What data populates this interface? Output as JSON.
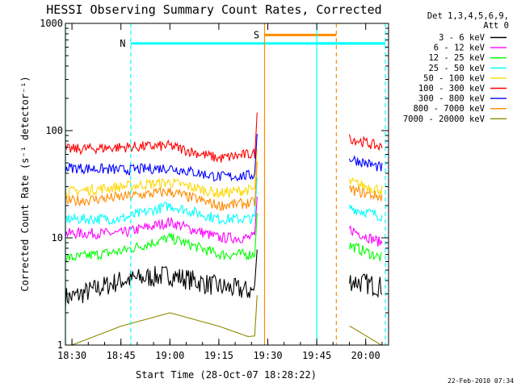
{
  "chart_data": {
    "type": "line",
    "title": "HESSI Observing Summary Count Rates, Corrected",
    "xlabel": "Start Time (28-Oct-07 18:28:22)",
    "ylabel": "Corrected Count Rate (s⁻¹ detector⁻¹)",
    "y_scale": "log",
    "ylim": [
      1,
      1000
    ],
    "xlim": [
      "18:28",
      "20:07"
    ],
    "x_ticks": [
      "18:30",
      "18:45",
      "19:00",
      "19:15",
      "19:30",
      "19:45",
      "20:00"
    ],
    "y_ticks": [
      "1",
      "10",
      "100",
      "1000"
    ],
    "legend_title": [
      "Det 1,3,4,5,6,9,",
      "Att 0"
    ],
    "legend_placement": "top-right, outside plot",
    "timestamp": "22-Feb-2010 07:34",
    "markers": [
      {
        "label": "",
        "time": "18:28",
        "color": "#00ffff",
        "style": "solid"
      },
      {
        "label": "N",
        "time": "18:48",
        "color": "#00ffff",
        "style": "dashed",
        "band_value": 650
      },
      {
        "label": "S",
        "time": "19:29",
        "color": "#ff8c00",
        "style": "solid",
        "band_value": 780
      },
      {
        "label": "",
        "time": "19:51",
        "color": "#ff8c00",
        "style": "dashed"
      },
      {
        "label": "",
        "time": "19:45",
        "color": "#00ffff",
        "style": "solid",
        "band_value": 650
      },
      {
        "label": "",
        "time": "20:06",
        "color": "#00ffff",
        "style": "dashed"
      }
    ],
    "segments": [
      {
        "start": "18:28",
        "end": "19:26"
      },
      {
        "start": "19:55",
        "end": "20:05"
      }
    ],
    "series": [
      {
        "name": "3 - 6 keV",
        "color": "#000000",
        "values": [
          [
            18.5,
            2.8
          ],
          [
            18.75,
            4.0
          ],
          [
            19.0,
            4.5
          ],
          [
            19.25,
            3.5
          ],
          [
            19.4,
            3.2
          ],
          [
            19.92,
            4.0
          ],
          [
            20.08,
            3.5
          ]
        ]
      },
      {
        "name": "6 - 12 keV",
        "color": "#ff00ff",
        "values": [
          [
            18.5,
            11
          ],
          [
            18.75,
            11
          ],
          [
            19.0,
            14
          ],
          [
            19.25,
            10
          ],
          [
            19.4,
            10
          ],
          [
            19.92,
            12
          ],
          [
            20.08,
            9
          ]
        ]
      },
      {
        "name": "12 - 25 keV",
        "color": "#00ff00",
        "values": [
          [
            18.5,
            6.5
          ],
          [
            18.75,
            7.5
          ],
          [
            19.0,
            10
          ],
          [
            19.25,
            7
          ],
          [
            19.4,
            7
          ],
          [
            19.92,
            8.5
          ],
          [
            20.08,
            6.5
          ]
        ]
      },
      {
        "name": "25 - 50 keV",
        "color": "#00ffff",
        "values": [
          [
            18.5,
            15
          ],
          [
            18.75,
            15
          ],
          [
            19.0,
            20
          ],
          [
            19.25,
            15
          ],
          [
            19.4,
            15
          ],
          [
            19.92,
            19
          ],
          [
            20.08,
            16
          ]
        ]
      },
      {
        "name": "50 - 100 keV",
        "color": "#ffd700",
        "values": [
          [
            18.5,
            27
          ],
          [
            18.75,
            30
          ],
          [
            19.0,
            33
          ],
          [
            19.25,
            26
          ],
          [
            19.4,
            28
          ],
          [
            19.92,
            33
          ],
          [
            20.08,
            28
          ]
        ]
      },
      {
        "name": "100 - 300 keV",
        "color": "#ff0000",
        "values": [
          [
            18.5,
            67
          ],
          [
            18.75,
            70
          ],
          [
            19.0,
            72
          ],
          [
            19.25,
            55
          ],
          [
            19.4,
            60
          ],
          [
            19.92,
            85
          ],
          [
            20.08,
            70
          ]
        ]
      },
      {
        "name": "300 - 800 keV",
        "color": "#0000ff",
        "values": [
          [
            18.5,
            45
          ],
          [
            18.75,
            43
          ],
          [
            19.0,
            45
          ],
          [
            19.25,
            37
          ],
          [
            19.4,
            38
          ],
          [
            19.92,
            55
          ],
          [
            20.08,
            45
          ]
        ]
      },
      {
        "name": "800 - 7000 keV",
        "color": "#ff8c00",
        "values": [
          [
            18.5,
            22
          ],
          [
            18.75,
            24
          ],
          [
            19.0,
            27
          ],
          [
            19.25,
            20
          ],
          [
            19.4,
            21
          ],
          [
            19.92,
            28
          ],
          [
            20.08,
            24
          ]
        ]
      },
      {
        "name": "7000 - 20000 keV",
        "color": "#8b8b00",
        "values": [
          [
            18.5,
            1.0
          ],
          [
            18.75,
            1.5
          ],
          [
            19.0,
            2.0
          ],
          [
            19.25,
            1.5
          ],
          [
            19.4,
            1.2
          ],
          [
            19.92,
            1.5
          ],
          [
            20.08,
            1.0
          ]
        ]
      }
    ]
  }
}
